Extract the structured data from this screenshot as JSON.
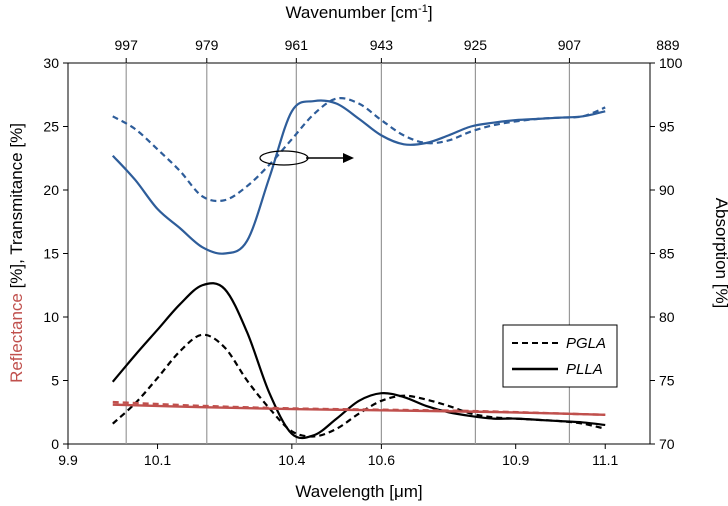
{
  "chart_data": {
    "type": "line",
    "title": "",
    "xlabel": "Wavelength [μm]",
    "x2label": "Wavenumber [cm",
    "x2label_sup": "-1",
    "x2label_close": "]",
    "ylabel_parts": [
      {
        "text": "Reflectance",
        "color": "#C0504D"
      },
      {
        "text": " [%], Transmitance [%]",
        "color": "#000000"
      }
    ],
    "y2label": "Absorption [%]",
    "xlim": [
      9.9,
      11.2
    ],
    "ylim": [
      0,
      30
    ],
    "y2lim": [
      70,
      100
    ],
    "grid": "vertical",
    "legend_position": "right",
    "x_ticks": [
      {
        "value": 9.9,
        "label": "9.9"
      },
      {
        "value": 10.1,
        "label": "10.1"
      },
      {
        "value": 10.4,
        "label": "10.4"
      },
      {
        "value": 10.6,
        "label": "10.6"
      },
      {
        "value": 10.9,
        "label": "10.9"
      },
      {
        "value": 11.1,
        "label": "11.1"
      }
    ],
    "x2_ticks": [
      {
        "value": 10.03,
        "label": "997"
      },
      {
        "value": 10.21,
        "label": "979"
      },
      {
        "value": 10.41,
        "label": "961"
      },
      {
        "value": 10.6,
        "label": "943"
      },
      {
        "value": 10.81,
        "label": "925"
      },
      {
        "value": 11.02,
        "label": "907"
      },
      {
        "value": 11.24,
        "label": "889"
      }
    ],
    "y_ticks": [
      0,
      5,
      10,
      15,
      20,
      25,
      30
    ],
    "y2_ticks": [
      70,
      75,
      80,
      85,
      90,
      95,
      100
    ],
    "legend": [
      {
        "name": "PGLA",
        "dash": "dashed"
      },
      {
        "name": "PLLA",
        "dash": "solid"
      }
    ],
    "annotation": "oval with arrow pointing right toward absorption axis",
    "colors": {
      "absorption": "#2E5D9A",
      "transmittance": "#000000",
      "reflectance": "#C0504D",
      "grid": "#999999"
    },
    "series": [
      {
        "axis": "y2",
        "color": "#2E5D9A",
        "dash": "dashed",
        "x": [
          10.0,
          10.05,
          10.1,
          10.15,
          10.2,
          10.25,
          10.3,
          10.35,
          10.4,
          10.45,
          10.5,
          10.55,
          10.6,
          10.65,
          10.7,
          10.75,
          10.8,
          10.85,
          10.9,
          10.95,
          11.0,
          11.05,
          11.1
        ],
        "values": [
          95.8,
          94.8,
          93.2,
          91.5,
          89.5,
          89.2,
          90.3,
          92.0,
          94.0,
          96.0,
          97.2,
          96.8,
          95.5,
          94.3,
          93.7,
          93.9,
          94.6,
          95.1,
          95.4,
          95.6,
          95.7,
          95.8,
          96.5
        ]
      },
      {
        "axis": "y2",
        "color": "#2E5D9A",
        "dash": "solid",
        "x": [
          10.0,
          10.05,
          10.1,
          10.15,
          10.2,
          10.25,
          10.3,
          10.35,
          10.4,
          10.45,
          10.5,
          10.55,
          10.6,
          10.65,
          10.7,
          10.75,
          10.8,
          10.85,
          10.9,
          10.95,
          11.0,
          11.05,
          11.1
        ],
        "values": [
          92.7,
          90.8,
          88.5,
          87.0,
          85.5,
          85.0,
          86.0,
          91.0,
          96.2,
          97.0,
          96.8,
          95.6,
          94.3,
          93.6,
          93.7,
          94.3,
          95.0,
          95.3,
          95.5,
          95.6,
          95.7,
          95.8,
          96.2
        ]
      },
      {
        "axis": "y",
        "color": "#000000",
        "dash": "dashed",
        "x": [
          10.0,
          10.05,
          10.1,
          10.15,
          10.2,
          10.25,
          10.3,
          10.35,
          10.4,
          10.45,
          10.5,
          10.55,
          10.6,
          10.65,
          10.7,
          10.75,
          10.8,
          10.85,
          10.9,
          10.95,
          11.0,
          11.05,
          11.1
        ],
        "values": [
          1.6,
          3.2,
          5.2,
          7.3,
          8.6,
          7.6,
          5.0,
          2.8,
          1.0,
          0.6,
          1.2,
          2.4,
          3.4,
          3.8,
          3.5,
          3.0,
          2.4,
          2.1,
          2.0,
          1.9,
          1.8,
          1.6,
          1.2
        ]
      },
      {
        "axis": "y",
        "color": "#000000",
        "dash": "solid",
        "x": [
          10.0,
          10.05,
          10.1,
          10.15,
          10.2,
          10.25,
          10.3,
          10.35,
          10.4,
          10.45,
          10.5,
          10.55,
          10.6,
          10.65,
          10.7,
          10.75,
          10.8,
          10.85,
          10.9,
          10.95,
          11.0,
          11.05,
          11.1
        ],
        "values": [
          4.9,
          7.0,
          9.0,
          11.0,
          12.5,
          12.2,
          8.8,
          4.0,
          0.8,
          0.7,
          2.0,
          3.4,
          4.0,
          3.7,
          3.0,
          2.5,
          2.2,
          2.0,
          2.0,
          1.9,
          1.8,
          1.7,
          1.5
        ]
      },
      {
        "axis": "y",
        "color": "#C0504D",
        "dash": "dashed",
        "x": [
          10.0,
          10.2,
          10.4,
          10.6,
          10.8,
          11.0,
          11.1
        ],
        "values": [
          3.3,
          3.0,
          2.8,
          2.7,
          2.6,
          2.4,
          2.3
        ]
      },
      {
        "axis": "y",
        "color": "#C0504D",
        "dash": "solid",
        "x": [
          10.0,
          10.2,
          10.4,
          10.6,
          10.8,
          11.0,
          11.1
        ],
        "values": [
          3.1,
          2.9,
          2.75,
          2.65,
          2.55,
          2.4,
          2.3
        ]
      }
    ]
  }
}
